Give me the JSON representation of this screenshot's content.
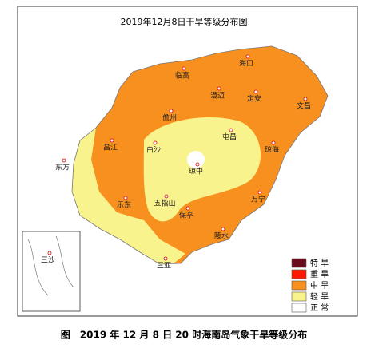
{
  "title": "2019年12月8日干旱等级分布图",
  "cities": [
    "海口",
    "临高",
    "澄迈",
    "定安",
    "文昌",
    "儋州",
    "屯昌",
    "琼海",
    "昌江",
    "白沙",
    "东方",
    "琼中",
    "万宁",
    "五指山",
    "乐东",
    "保亭",
    "陵水",
    "三亚",
    "三沙"
  ],
  "legend": [
    {
      "label": "特 旱",
      "color": "#6b0a1a"
    },
    {
      "label": "重 旱",
      "color": "#ff1a00"
    },
    {
      "label": "中 旱",
      "color": "#f7901e"
    },
    {
      "label": "轻 旱",
      "color": "#f8f38c"
    },
    {
      "label": "正 常",
      "color": "#ffffff"
    }
  ],
  "caption": "图　2019 年 12 月 8 日 20 时海南岛气象干旱等级分布"
}
